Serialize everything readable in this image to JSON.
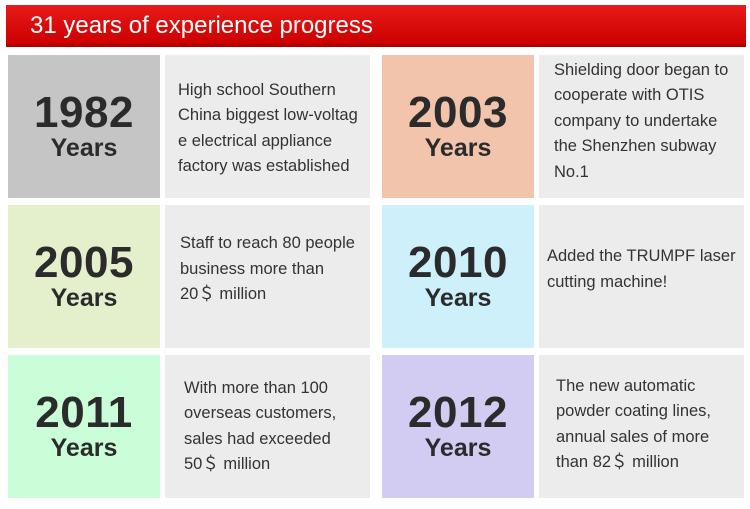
{
  "header": {
    "title": "31 years of experience progress"
  },
  "colors": {
    "header_red": "#dd0a0a",
    "1982": "#c5c5c5",
    "2003": "#f3c4ac",
    "2005": "#e4f0cc",
    "2010": "#cdf0fb",
    "2011": "#cafed8",
    "2012": "#d3ccf2",
    "description_bg": "#ececec"
  },
  "milestones": [
    {
      "year": "1982",
      "unit": "Years",
      "lines": [
        "High school Southern",
        "China biggest low-voltag",
        "e electrical appliance",
        "factory was established"
      ]
    },
    {
      "year": "2003",
      "unit": "Years",
      "lines": [
        "Shielding door began to",
        "cooperate with OTIS",
        "company to undertake",
        "the Shenzhen subway",
        "No.1"
      ]
    },
    {
      "year": "2005",
      "unit": "Years",
      "lines": [
        "Staff to reach 80 people",
        "business more than",
        "20＄ million"
      ]
    },
    {
      "year": "2010",
      "unit": "Years",
      "lines": [
        "Added the TRUMPF laser",
        "cutting machine!"
      ]
    },
    {
      "year": "2011",
      "unit": "Years",
      "lines": [
        "With more than 100",
        "overseas customers,",
        "sales had  exceeded",
        "50＄ million"
      ]
    },
    {
      "year": "2012",
      "unit": "Years",
      "lines": [
        "The new automatic",
        "powder coating lines,",
        "annual sales of more",
        "than 82＄ million"
      ]
    }
  ]
}
